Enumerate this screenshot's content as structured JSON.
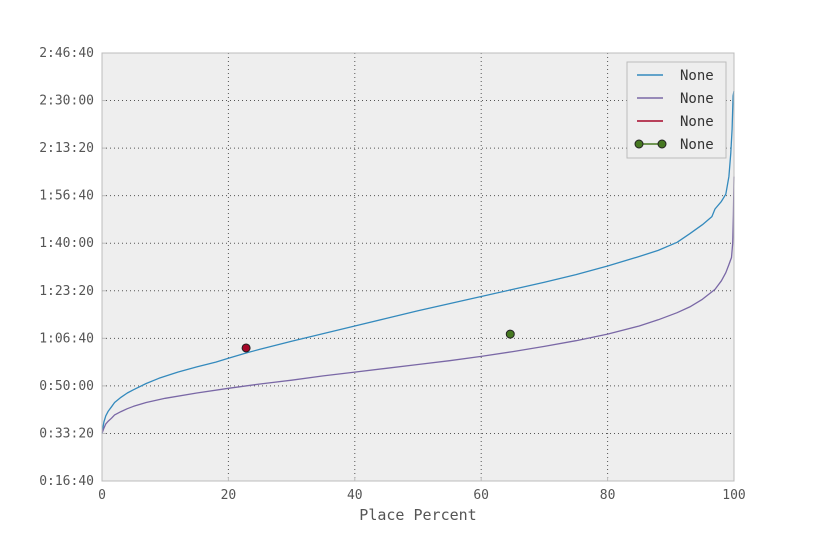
{
  "chart_data": {
    "type": "line",
    "title": "",
    "xlabel": "Place Percent",
    "ylabel": "",
    "xlim": [
      0,
      100
    ],
    "ylim_seconds": [
      1000,
      10000
    ],
    "x_ticks": [
      {
        "value": 0,
        "label": "0"
      },
      {
        "value": 20,
        "label": "20"
      },
      {
        "value": 40,
        "label": "40"
      },
      {
        "value": 60,
        "label": "60"
      },
      {
        "value": 80,
        "label": "80"
      },
      {
        "value": 100,
        "label": "100"
      }
    ],
    "y_ticks": [
      {
        "value": 1000,
        "label": "0:16:40"
      },
      {
        "value": 2000,
        "label": "0:33:20"
      },
      {
        "value": 3000,
        "label": "0:50:00"
      },
      {
        "value": 4000,
        "label": "1:06:40"
      },
      {
        "value": 5000,
        "label": "1:23:20"
      },
      {
        "value": 6000,
        "label": "1:40:00"
      },
      {
        "value": 7000,
        "label": "1:56:40"
      },
      {
        "value": 8000,
        "label": "2:13:20"
      },
      {
        "value": 9000,
        "label": "2:30:00"
      },
      {
        "value": 10000,
        "label": "2:46:40"
      }
    ],
    "grid": true,
    "legend_position": "top-right",
    "series": [
      {
        "name": "None",
        "kind": "line",
        "color": "#348abd",
        "x": [
          0,
          0.3,
          0.6,
          1,
          1.5,
          2,
          3,
          4,
          5,
          7,
          9,
          12,
          15,
          18,
          20,
          23,
          25,
          30,
          35,
          40,
          45,
          50,
          55,
          60,
          65,
          70,
          75,
          80,
          85,
          88,
          91,
          93,
          95,
          96.5,
          97,
          98,
          98.7,
          99.2,
          99.5,
          99.7,
          99.85,
          100
        ],
        "y": [
          2000,
          2240,
          2370,
          2470,
          2560,
          2650,
          2760,
          2850,
          2920,
          3050,
          3160,
          3290,
          3400,
          3500,
          3580,
          3700,
          3770,
          3940,
          4100,
          4260,
          4420,
          4580,
          4730,
          4880,
          5030,
          5180,
          5340,
          5520,
          5720,
          5850,
          6020,
          6200,
          6390,
          6560,
          6720,
          6880,
          7030,
          7400,
          7900,
          8400,
          9100,
          9200
        ]
      },
      {
        "name": "None",
        "kind": "line",
        "color": "#7a68a6",
        "x": [
          0,
          0.3,
          0.6,
          1,
          1.5,
          2,
          3,
          4,
          5,
          7,
          10,
          15,
          20,
          25,
          30,
          35,
          40,
          45,
          50,
          55,
          60,
          65,
          70,
          75,
          80,
          85,
          88,
          91,
          93,
          95,
          97,
          98,
          98.7,
          99.2,
          99.6,
          99.8,
          99.9,
          100
        ],
        "y": [
          2000,
          2110,
          2200,
          2260,
          2320,
          2390,
          2460,
          2520,
          2570,
          2650,
          2740,
          2850,
          2950,
          3040,
          3120,
          3210,
          3290,
          3370,
          3450,
          3530,
          3620,
          3720,
          3830,
          3950,
          4090,
          4260,
          4390,
          4540,
          4660,
          4820,
          5030,
          5210,
          5380,
          5550,
          5700,
          6000,
          6600,
          7400
        ]
      },
      {
        "name": "None",
        "kind": "marker",
        "color": "#a60628",
        "x": [
          22.8
        ],
        "y": [
          3798
        ]
      },
      {
        "name": "None",
        "kind": "line-marker",
        "color": "#467821",
        "x": [
          64.6
        ],
        "y": [
          4089
        ]
      }
    ]
  }
}
